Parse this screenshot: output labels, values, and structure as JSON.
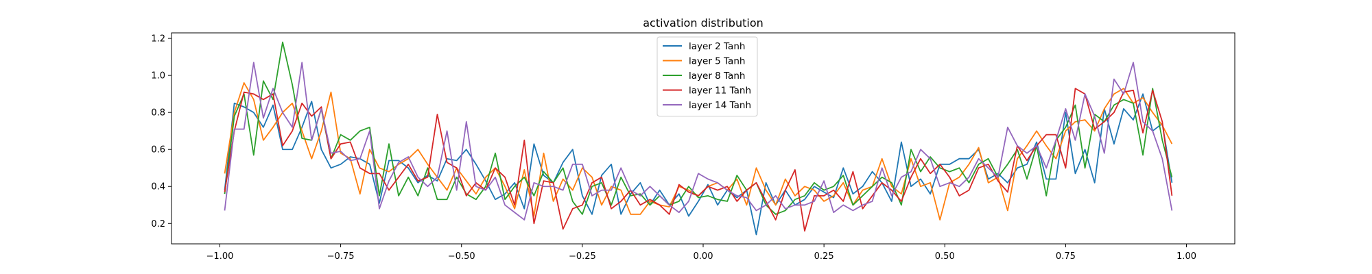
{
  "chart_data": {
    "type": "line",
    "title": "activation distribution",
    "xlabel": "",
    "ylabel": "",
    "xlim": [
      -1.1,
      1.1
    ],
    "ylim": [
      0.09,
      1.23
    ],
    "xticks": [
      -1.0,
      -0.75,
      -0.5,
      -0.25,
      0.0,
      0.25,
      0.5,
      0.75,
      1.0
    ],
    "xtick_labels": [
      "−1.00",
      "−0.75",
      "−0.50",
      "−0.25",
      "0.00",
      "0.25",
      "0.50",
      "0.75",
      "1.00"
    ],
    "yticks": [
      0.2,
      0.4,
      0.6,
      0.8,
      1.0,
      1.2
    ],
    "ytick_labels": [
      "0.2",
      "0.4",
      "0.6",
      "0.8",
      "1.0",
      "1.2"
    ],
    "grid": false,
    "legend": "top-center",
    "series": [
      {
        "name": "layer 2 Tanh",
        "color": "#1f77b4",
        "x": [
          -0.99,
          -0.97,
          -0.95,
          -0.93,
          -0.91,
          -0.89,
          -0.87,
          -0.85,
          -0.83,
          -0.81,
          -0.79,
          -0.77,
          -0.75,
          -0.73,
          -0.71,
          -0.69,
          -0.67,
          -0.65,
          -0.63,
          -0.61,
          -0.59,
          -0.57,
          -0.55,
          -0.53,
          -0.51,
          -0.49,
          -0.47,
          -0.45,
          -0.43,
          -0.41,
          -0.39,
          -0.37,
          -0.35,
          -0.33,
          -0.31,
          -0.29,
          -0.27,
          -0.25,
          -0.23,
          -0.21,
          -0.19,
          -0.17,
          -0.15,
          -0.13,
          -0.11,
          -0.09,
          -0.07,
          -0.05,
          -0.03,
          -0.01,
          0.01,
          0.03,
          0.05,
          0.07,
          0.09,
          0.11,
          0.13,
          0.15,
          0.17,
          0.19,
          0.21,
          0.23,
          0.25,
          0.27,
          0.29,
          0.31,
          0.33,
          0.35,
          0.37,
          0.39,
          0.41,
          0.43,
          0.45,
          0.47,
          0.49,
          0.51,
          0.53,
          0.55,
          0.57,
          0.59,
          0.61,
          0.63,
          0.65,
          0.67,
          0.69,
          0.71,
          0.73,
          0.75,
          0.77,
          0.79,
          0.81,
          0.83,
          0.85,
          0.87,
          0.89,
          0.91,
          0.93,
          0.95,
          0.97
        ],
        "y": [
          0.38,
          0.85,
          0.83,
          0.8,
          0.72,
          0.84,
          0.6,
          0.6,
          0.72,
          0.86,
          0.6,
          0.5,
          0.52,
          0.56,
          0.55,
          0.52,
          0.31,
          0.54,
          0.54,
          0.5,
          0.42,
          0.46,
          0.43,
          0.55,
          0.54,
          0.6,
          0.52,
          0.43,
          0.33,
          0.36,
          0.42,
          0.28,
          0.63,
          0.46,
          0.42,
          0.53,
          0.6,
          0.35,
          0.25,
          0.46,
          0.52,
          0.25,
          0.36,
          0.42,
          0.3,
          0.38,
          0.3,
          0.36,
          0.24,
          0.32,
          0.41,
          0.3,
          0.38,
          0.34,
          0.38,
          0.14,
          0.42,
          0.3,
          0.38,
          0.3,
          0.33,
          0.4,
          0.37,
          0.34,
          0.5,
          0.36,
          0.4,
          0.48,
          0.42,
          0.32,
          0.64,
          0.4,
          0.44,
          0.36,
          0.52,
          0.52,
          0.55,
          0.55,
          0.6,
          0.44,
          0.47,
          0.42,
          0.5,
          0.52,
          0.64,
          0.44,
          0.44,
          0.8,
          0.47,
          0.6,
          0.42,
          0.82,
          0.63,
          0.82,
          0.76,
          0.9,
          0.7,
          0.74,
          0.42
        ]
      },
      {
        "name": "layer 5 Tanh",
        "color": "#ff7f0e",
        "x": [
          -0.99,
          -0.97,
          -0.95,
          -0.93,
          -0.91,
          -0.89,
          -0.87,
          -0.85,
          -0.83,
          -0.81,
          -0.79,
          -0.77,
          -0.75,
          -0.73,
          -0.71,
          -0.69,
          -0.67,
          -0.65,
          -0.63,
          -0.61,
          -0.59,
          -0.57,
          -0.55,
          -0.53,
          -0.51,
          -0.49,
          -0.47,
          -0.45,
          -0.43,
          -0.41,
          -0.39,
          -0.37,
          -0.35,
          -0.33,
          -0.31,
          -0.29,
          -0.27,
          -0.25,
          -0.23,
          -0.21,
          -0.19,
          -0.17,
          -0.15,
          -0.13,
          -0.11,
          -0.09,
          -0.07,
          -0.05,
          -0.03,
          -0.01,
          0.01,
          0.03,
          0.05,
          0.07,
          0.09,
          0.11,
          0.13,
          0.15,
          0.17,
          0.19,
          0.21,
          0.23,
          0.25,
          0.27,
          0.29,
          0.31,
          0.33,
          0.35,
          0.37,
          0.39,
          0.41,
          0.43,
          0.45,
          0.47,
          0.49,
          0.51,
          0.53,
          0.55,
          0.57,
          0.59,
          0.61,
          0.63,
          0.65,
          0.67,
          0.69,
          0.71,
          0.73,
          0.75,
          0.77,
          0.79,
          0.81,
          0.83,
          0.85,
          0.87,
          0.89,
          0.91,
          0.93,
          0.95,
          0.97
        ],
        "y": [
          0.47,
          0.8,
          0.96,
          0.87,
          0.65,
          0.72,
          0.8,
          0.85,
          0.7,
          0.55,
          0.7,
          0.91,
          0.58,
          0.55,
          0.36,
          0.6,
          0.5,
          0.48,
          0.52,
          0.55,
          0.6,
          0.52,
          0.45,
          0.38,
          0.5,
          0.43,
          0.36,
          0.45,
          0.5,
          0.4,
          0.28,
          0.49,
          0.24,
          0.58,
          0.32,
          0.44,
          0.38,
          0.5,
          0.45,
          0.3,
          0.4,
          0.38,
          0.25,
          0.25,
          0.32,
          0.3,
          0.29,
          0.4,
          0.38,
          0.35,
          0.4,
          0.42,
          0.38,
          0.44,
          0.3,
          0.5,
          0.38,
          0.3,
          0.44,
          0.35,
          0.4,
          0.38,
          0.32,
          0.35,
          0.42,
          0.3,
          0.38,
          0.4,
          0.55,
          0.4,
          0.36,
          0.55,
          0.4,
          0.42,
          0.22,
          0.42,
          0.45,
          0.52,
          0.61,
          0.42,
          0.45,
          0.27,
          0.55,
          0.62,
          0.7,
          0.62,
          0.55,
          0.7,
          0.75,
          0.76,
          0.7,
          0.82,
          0.9,
          0.93,
          0.85,
          0.88,
          0.8,
          0.73,
          0.63
        ]
      },
      {
        "name": "layer 8 Tanh",
        "color": "#2ca02c",
        "x": [
          -0.99,
          -0.97,
          -0.95,
          -0.93,
          -0.91,
          -0.89,
          -0.87,
          -0.85,
          -0.83,
          -0.81,
          -0.79,
          -0.77,
          -0.75,
          -0.73,
          -0.71,
          -0.69,
          -0.67,
          -0.65,
          -0.63,
          -0.61,
          -0.59,
          -0.57,
          -0.55,
          -0.53,
          -0.51,
          -0.49,
          -0.47,
          -0.45,
          -0.43,
          -0.41,
          -0.39,
          -0.37,
          -0.35,
          -0.33,
          -0.31,
          -0.29,
          -0.27,
          -0.25,
          -0.23,
          -0.21,
          -0.19,
          -0.17,
          -0.15,
          -0.13,
          -0.11,
          -0.09,
          -0.07,
          -0.05,
          -0.03,
          -0.01,
          0.01,
          0.03,
          0.05,
          0.07,
          0.09,
          0.11,
          0.13,
          0.15,
          0.17,
          0.19,
          0.21,
          0.23,
          0.25,
          0.27,
          0.29,
          0.31,
          0.33,
          0.35,
          0.37,
          0.39,
          0.41,
          0.43,
          0.45,
          0.47,
          0.49,
          0.51,
          0.53,
          0.55,
          0.57,
          0.59,
          0.61,
          0.63,
          0.65,
          0.67,
          0.69,
          0.71,
          0.73,
          0.75,
          0.77,
          0.79,
          0.81,
          0.83,
          0.85,
          0.87,
          0.89,
          0.91,
          0.93,
          0.95,
          0.97
        ],
        "y": [
          0.36,
          0.78,
          0.9,
          0.57,
          0.97,
          0.87,
          1.18,
          0.95,
          0.66,
          0.65,
          0.82,
          0.55,
          0.68,
          0.65,
          0.7,
          0.72,
          0.35,
          0.63,
          0.35,
          0.45,
          0.35,
          0.5,
          0.33,
          0.33,
          0.45,
          0.36,
          0.33,
          0.4,
          0.58,
          0.33,
          0.4,
          0.45,
          0.35,
          0.48,
          0.42,
          0.5,
          0.32,
          0.25,
          0.4,
          0.42,
          0.3,
          0.45,
          0.35,
          0.36,
          0.3,
          0.35,
          0.3,
          0.32,
          0.4,
          0.34,
          0.35,
          0.33,
          0.32,
          0.46,
          0.38,
          0.42,
          0.3,
          0.25,
          0.27,
          0.33,
          0.35,
          0.42,
          0.38,
          0.4,
          0.46,
          0.3,
          0.35,
          0.4,
          0.45,
          0.42,
          0.3,
          0.6,
          0.48,
          0.56,
          0.5,
          0.48,
          0.5,
          0.42,
          0.52,
          0.55,
          0.45,
          0.52,
          0.6,
          0.44,
          0.62,
          0.35,
          0.65,
          0.72,
          0.84,
          0.5,
          0.79,
          0.75,
          0.84,
          0.87,
          0.85,
          0.57,
          0.93,
          0.65,
          0.45
        ]
      },
      {
        "name": "layer 11 Tanh",
        "color": "#d62728",
        "x": [
          -0.99,
          -0.97,
          -0.95,
          -0.93,
          -0.91,
          -0.89,
          -0.87,
          -0.85,
          -0.83,
          -0.81,
          -0.79,
          -0.77,
          -0.75,
          -0.73,
          -0.71,
          -0.69,
          -0.67,
          -0.65,
          -0.63,
          -0.61,
          -0.59,
          -0.57,
          -0.55,
          -0.53,
          -0.51,
          -0.49,
          -0.47,
          -0.45,
          -0.43,
          -0.41,
          -0.39,
          -0.37,
          -0.35,
          -0.33,
          -0.31,
          -0.29,
          -0.27,
          -0.25,
          -0.23,
          -0.21,
          -0.19,
          -0.17,
          -0.15,
          -0.13,
          -0.11,
          -0.09,
          -0.07,
          -0.05,
          -0.03,
          -0.01,
          0.01,
          0.03,
          0.05,
          0.07,
          0.09,
          0.11,
          0.13,
          0.15,
          0.17,
          0.19,
          0.21,
          0.23,
          0.25,
          0.27,
          0.29,
          0.31,
          0.33,
          0.35,
          0.37,
          0.39,
          0.41,
          0.43,
          0.45,
          0.47,
          0.49,
          0.51,
          0.53,
          0.55,
          0.57,
          0.59,
          0.61,
          0.63,
          0.65,
          0.67,
          0.69,
          0.71,
          0.73,
          0.75,
          0.77,
          0.79,
          0.81,
          0.83,
          0.85,
          0.87,
          0.89,
          0.91,
          0.93,
          0.95,
          0.97
        ],
        "y": [
          0.37,
          0.7,
          0.91,
          0.9,
          0.87,
          0.9,
          0.62,
          0.7,
          0.85,
          0.78,
          0.83,
          0.55,
          0.63,
          0.64,
          0.5,
          0.47,
          0.47,
          0.38,
          0.45,
          0.52,
          0.43,
          0.45,
          0.79,
          0.53,
          0.5,
          0.35,
          0.42,
          0.38,
          0.5,
          0.45,
          0.3,
          0.65,
          0.2,
          0.43,
          0.42,
          0.17,
          0.28,
          0.3,
          0.42,
          0.45,
          0.28,
          0.32,
          0.38,
          0.3,
          0.33,
          0.3,
          0.25,
          0.41,
          0.37,
          0.35,
          0.4,
          0.38,
          0.4,
          0.32,
          0.38,
          0.42,
          0.32,
          0.22,
          0.38,
          0.49,
          0.16,
          0.35,
          0.35,
          0.38,
          0.32,
          0.48,
          0.28,
          0.35,
          0.42,
          0.38,
          0.32,
          0.45,
          0.55,
          0.47,
          0.52,
          0.45,
          0.35,
          0.38,
          0.5,
          0.52,
          0.43,
          0.37,
          0.62,
          0.54,
          0.62,
          0.68,
          0.68,
          0.5,
          0.93,
          0.9,
          0.71,
          0.75,
          0.8,
          0.91,
          0.92,
          0.69,
          0.92,
          0.75,
          0.35
        ]
      },
      {
        "name": "layer 14 Tanh",
        "color": "#9467bd",
        "x": [
          -0.99,
          -0.97,
          -0.95,
          -0.93,
          -0.91,
          -0.89,
          -0.87,
          -0.85,
          -0.83,
          -0.81,
          -0.79,
          -0.77,
          -0.75,
          -0.73,
          -0.71,
          -0.69,
          -0.67,
          -0.65,
          -0.63,
          -0.61,
          -0.59,
          -0.57,
          -0.55,
          -0.53,
          -0.51,
          -0.49,
          -0.47,
          -0.45,
          -0.43,
          -0.41,
          -0.39,
          -0.37,
          -0.35,
          -0.33,
          -0.31,
          -0.29,
          -0.27,
          -0.25,
          -0.23,
          -0.21,
          -0.19,
          -0.17,
          -0.15,
          -0.13,
          -0.11,
          -0.09,
          -0.07,
          -0.05,
          -0.03,
          -0.01,
          0.01,
          0.03,
          0.05,
          0.07,
          0.09,
          0.11,
          0.13,
          0.15,
          0.17,
          0.19,
          0.21,
          0.23,
          0.25,
          0.27,
          0.29,
          0.31,
          0.33,
          0.35,
          0.37,
          0.39,
          0.41,
          0.43,
          0.45,
          0.47,
          0.49,
          0.51,
          0.53,
          0.55,
          0.57,
          0.59,
          0.61,
          0.63,
          0.65,
          0.67,
          0.69,
          0.71,
          0.73,
          0.75,
          0.77,
          0.79,
          0.81,
          0.83,
          0.85,
          0.87,
          0.89,
          0.91,
          0.93,
          0.95,
          0.97
        ],
        "y": [
          0.27,
          0.71,
          0.71,
          1.07,
          0.77,
          0.93,
          0.8,
          0.72,
          1.07,
          0.65,
          0.82,
          0.58,
          0.59,
          0.54,
          0.55,
          0.7,
          0.28,
          0.43,
          0.53,
          0.56,
          0.45,
          0.4,
          0.45,
          0.7,
          0.38,
          0.75,
          0.4,
          0.38,
          0.45,
          0.3,
          0.26,
          0.22,
          0.42,
          0.4,
          0.4,
          0.38,
          0.52,
          0.52,
          0.35,
          0.38,
          0.38,
          0.5,
          0.38,
          0.35,
          0.4,
          0.35,
          0.3,
          0.26,
          0.32,
          0.47,
          0.44,
          0.42,
          0.38,
          0.35,
          0.34,
          0.27,
          0.3,
          0.35,
          0.28,
          0.3,
          0.3,
          0.32,
          0.43,
          0.26,
          0.3,
          0.27,
          0.3,
          0.32,
          0.5,
          0.35,
          0.45,
          0.48,
          0.6,
          0.55,
          0.4,
          0.42,
          0.4,
          0.45,
          0.55,
          0.5,
          0.45,
          0.72,
          0.62,
          0.58,
          0.62,
          0.5,
          0.65,
          0.82,
          0.65,
          0.9,
          0.78,
          0.58,
          0.98,
          0.9,
          1.07,
          0.75,
          0.7,
          0.55,
          0.27
        ]
      }
    ]
  }
}
